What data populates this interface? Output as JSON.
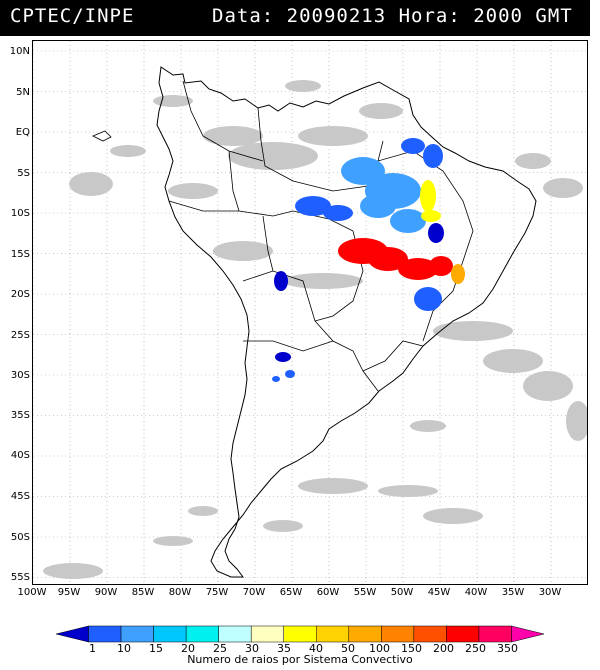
{
  "header": {
    "source": "CPTEC/INPE",
    "datetime": "Data: 20090213 Hora: 2000 GMT"
  },
  "axes": {
    "lat_ticks": [
      "10N",
      "5N",
      "EQ",
      "5S",
      "10S",
      "15S",
      "20S",
      "25S",
      "30S",
      "35S",
      "40S",
      "45S",
      "50S",
      "55S"
    ],
    "lon_ticks": [
      "100W",
      "95W",
      "90W",
      "85W",
      "80W",
      "75W",
      "70W",
      "65W",
      "60W",
      "55W",
      "50W",
      "45W",
      "40W",
      "35W",
      "30W"
    ]
  },
  "colorbar": {
    "labels": [
      "1",
      "10",
      "15",
      "20",
      "25",
      "30",
      "35",
      "40",
      "50",
      "100",
      "150",
      "200",
      "250",
      "350"
    ],
    "colors": [
      "#0000cc",
      "#1f5fff",
      "#3fa0ff",
      "#00c8ff",
      "#00f0f0",
      "#c0ffff",
      "#ffffc0",
      "#ffff00",
      "#ffd200",
      "#ffaa00",
      "#ff8200",
      "#ff5000",
      "#ff0000",
      "#ff0060",
      "#ff00aa"
    ],
    "caption": "Numero de raios por Sistema Convectivo"
  },
  "legend_colors": {
    "clouds": "#c8c8c8",
    "coast": "#000000",
    "grid": "#888888"
  }
}
